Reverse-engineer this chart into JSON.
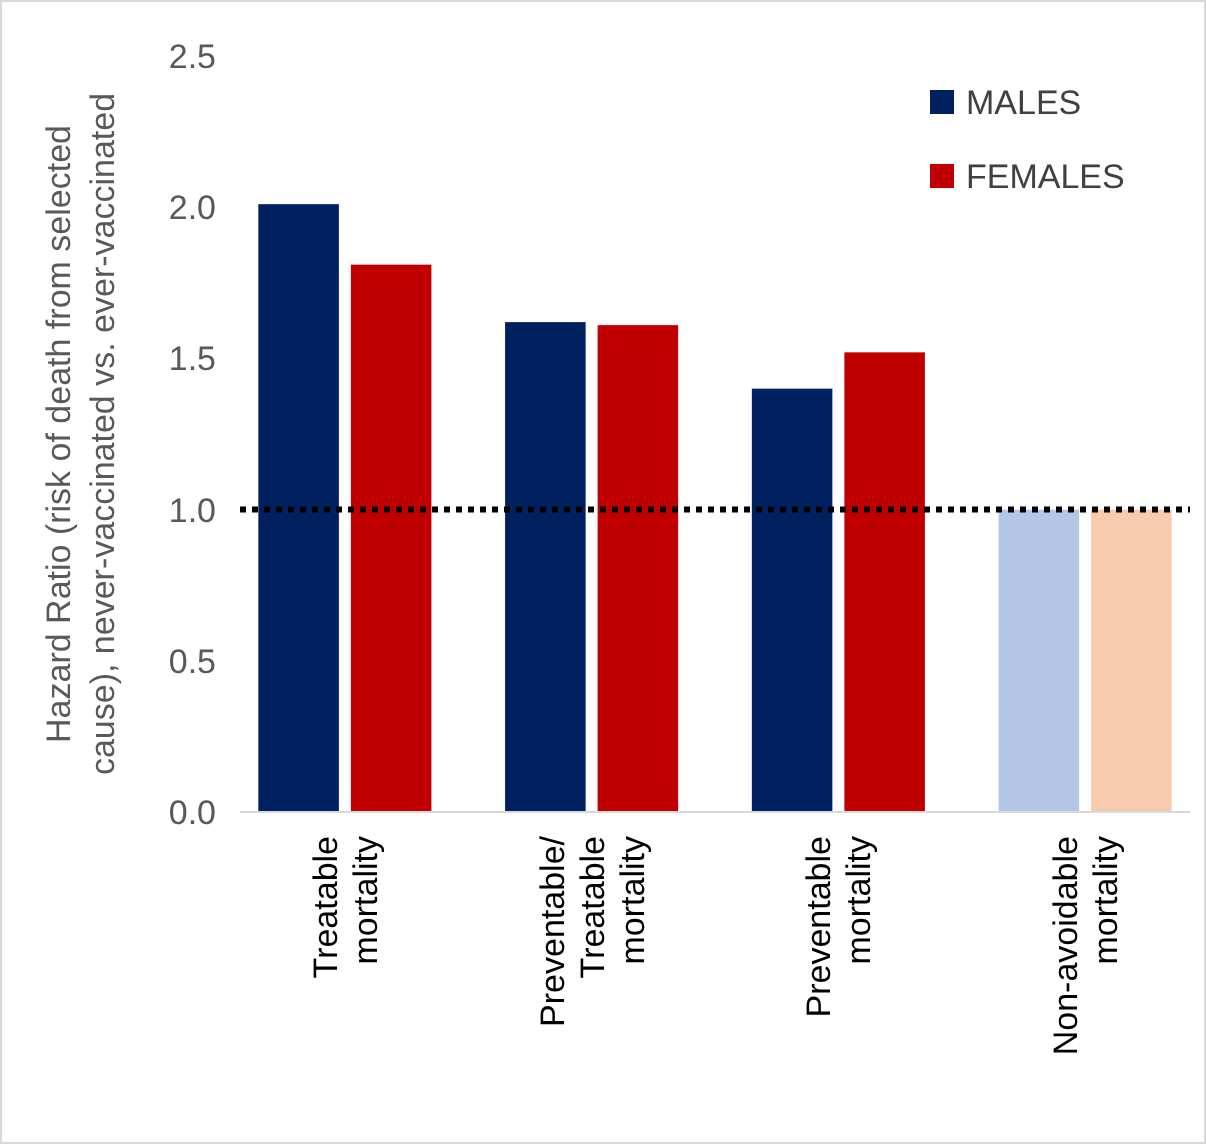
{
  "chart_data": {
    "type": "bar",
    "ylabel": "Hazard Ratio (risk of death from selected cause), never-vaccinated vs. ever-vaccinated",
    "categories": [
      "Treatable\nmortality",
      "Preventable/\nTreatable\nmortality",
      "Preventable\nmortality",
      "Non-avoidable\nmortality"
    ],
    "series": [
      {
        "name": "MALES",
        "color": "#002060",
        "colors": [
          "#002060",
          "#002060",
          "#002060",
          "#b4c7e7"
        ],
        "values": [
          2.01,
          1.62,
          1.4,
          1.0
        ]
      },
      {
        "name": "FEMALES",
        "color": "#c00000",
        "colors": [
          "#c00000",
          "#c00000",
          "#c00000",
          "#f8cbad"
        ],
        "values": [
          1.81,
          1.61,
          1.52,
          1.0
        ]
      }
    ],
    "ylim": [
      0,
      2.5
    ],
    "yticks": [
      {
        "value": 0,
        "label": "0.0"
      },
      {
        "value": 0.5,
        "label": "0.5"
      },
      {
        "value": 1,
        "label": "1.0"
      },
      {
        "value": 1.5,
        "label": "1.5"
      },
      {
        "value": 2,
        "label": "2.0"
      },
      {
        "value": 2.5,
        "label": "2.5"
      }
    ],
    "ref_lines": [
      {
        "axis": "y",
        "value": 1,
        "color": "#000000",
        "line_style": "dotted"
      }
    ],
    "legend": "top right",
    "grid": false
  }
}
